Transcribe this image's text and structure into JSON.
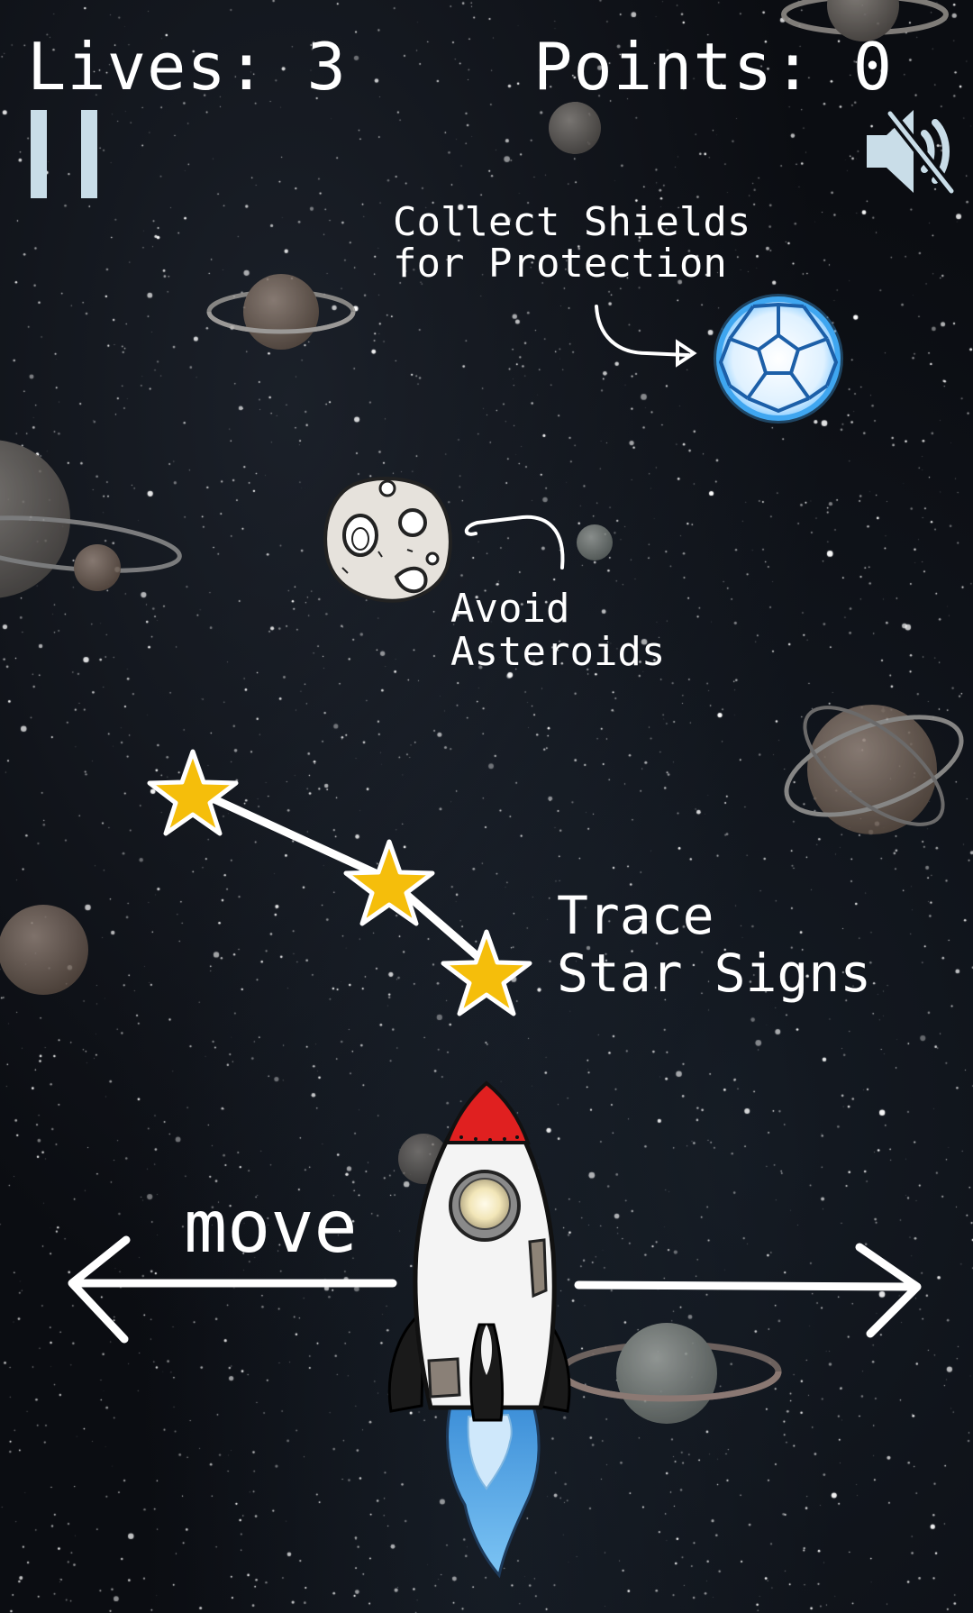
{
  "hud": {
    "lives_label": "Lives:",
    "lives_value": "3",
    "points_label": "Points:",
    "points_value": "0",
    "pause_icon": "pause-icon",
    "sound_icon": "speaker-muted-icon"
  },
  "hints": {
    "shields_line1": "Collect Shields",
    "shields_line2": "for Protection",
    "asteroids_line1": "Avoid",
    "asteroids_line2": "Asteroids",
    "stars_line1": "Trace",
    "stars_line2": "Star Signs",
    "move": "move"
  },
  "items": {
    "shield": "shield-orb-icon",
    "asteroid": "asteroid-icon",
    "stars": "star-icon",
    "rocket": "rocket-icon"
  },
  "colors": {
    "background": "#0b0d12",
    "text": "#ffffff",
    "hud_icon": "#c9dde8",
    "star": "#f5be0b",
    "shield_glow": "#3fa6f0",
    "rocket_nose": "#e02020",
    "flame": "#5aaeea"
  }
}
